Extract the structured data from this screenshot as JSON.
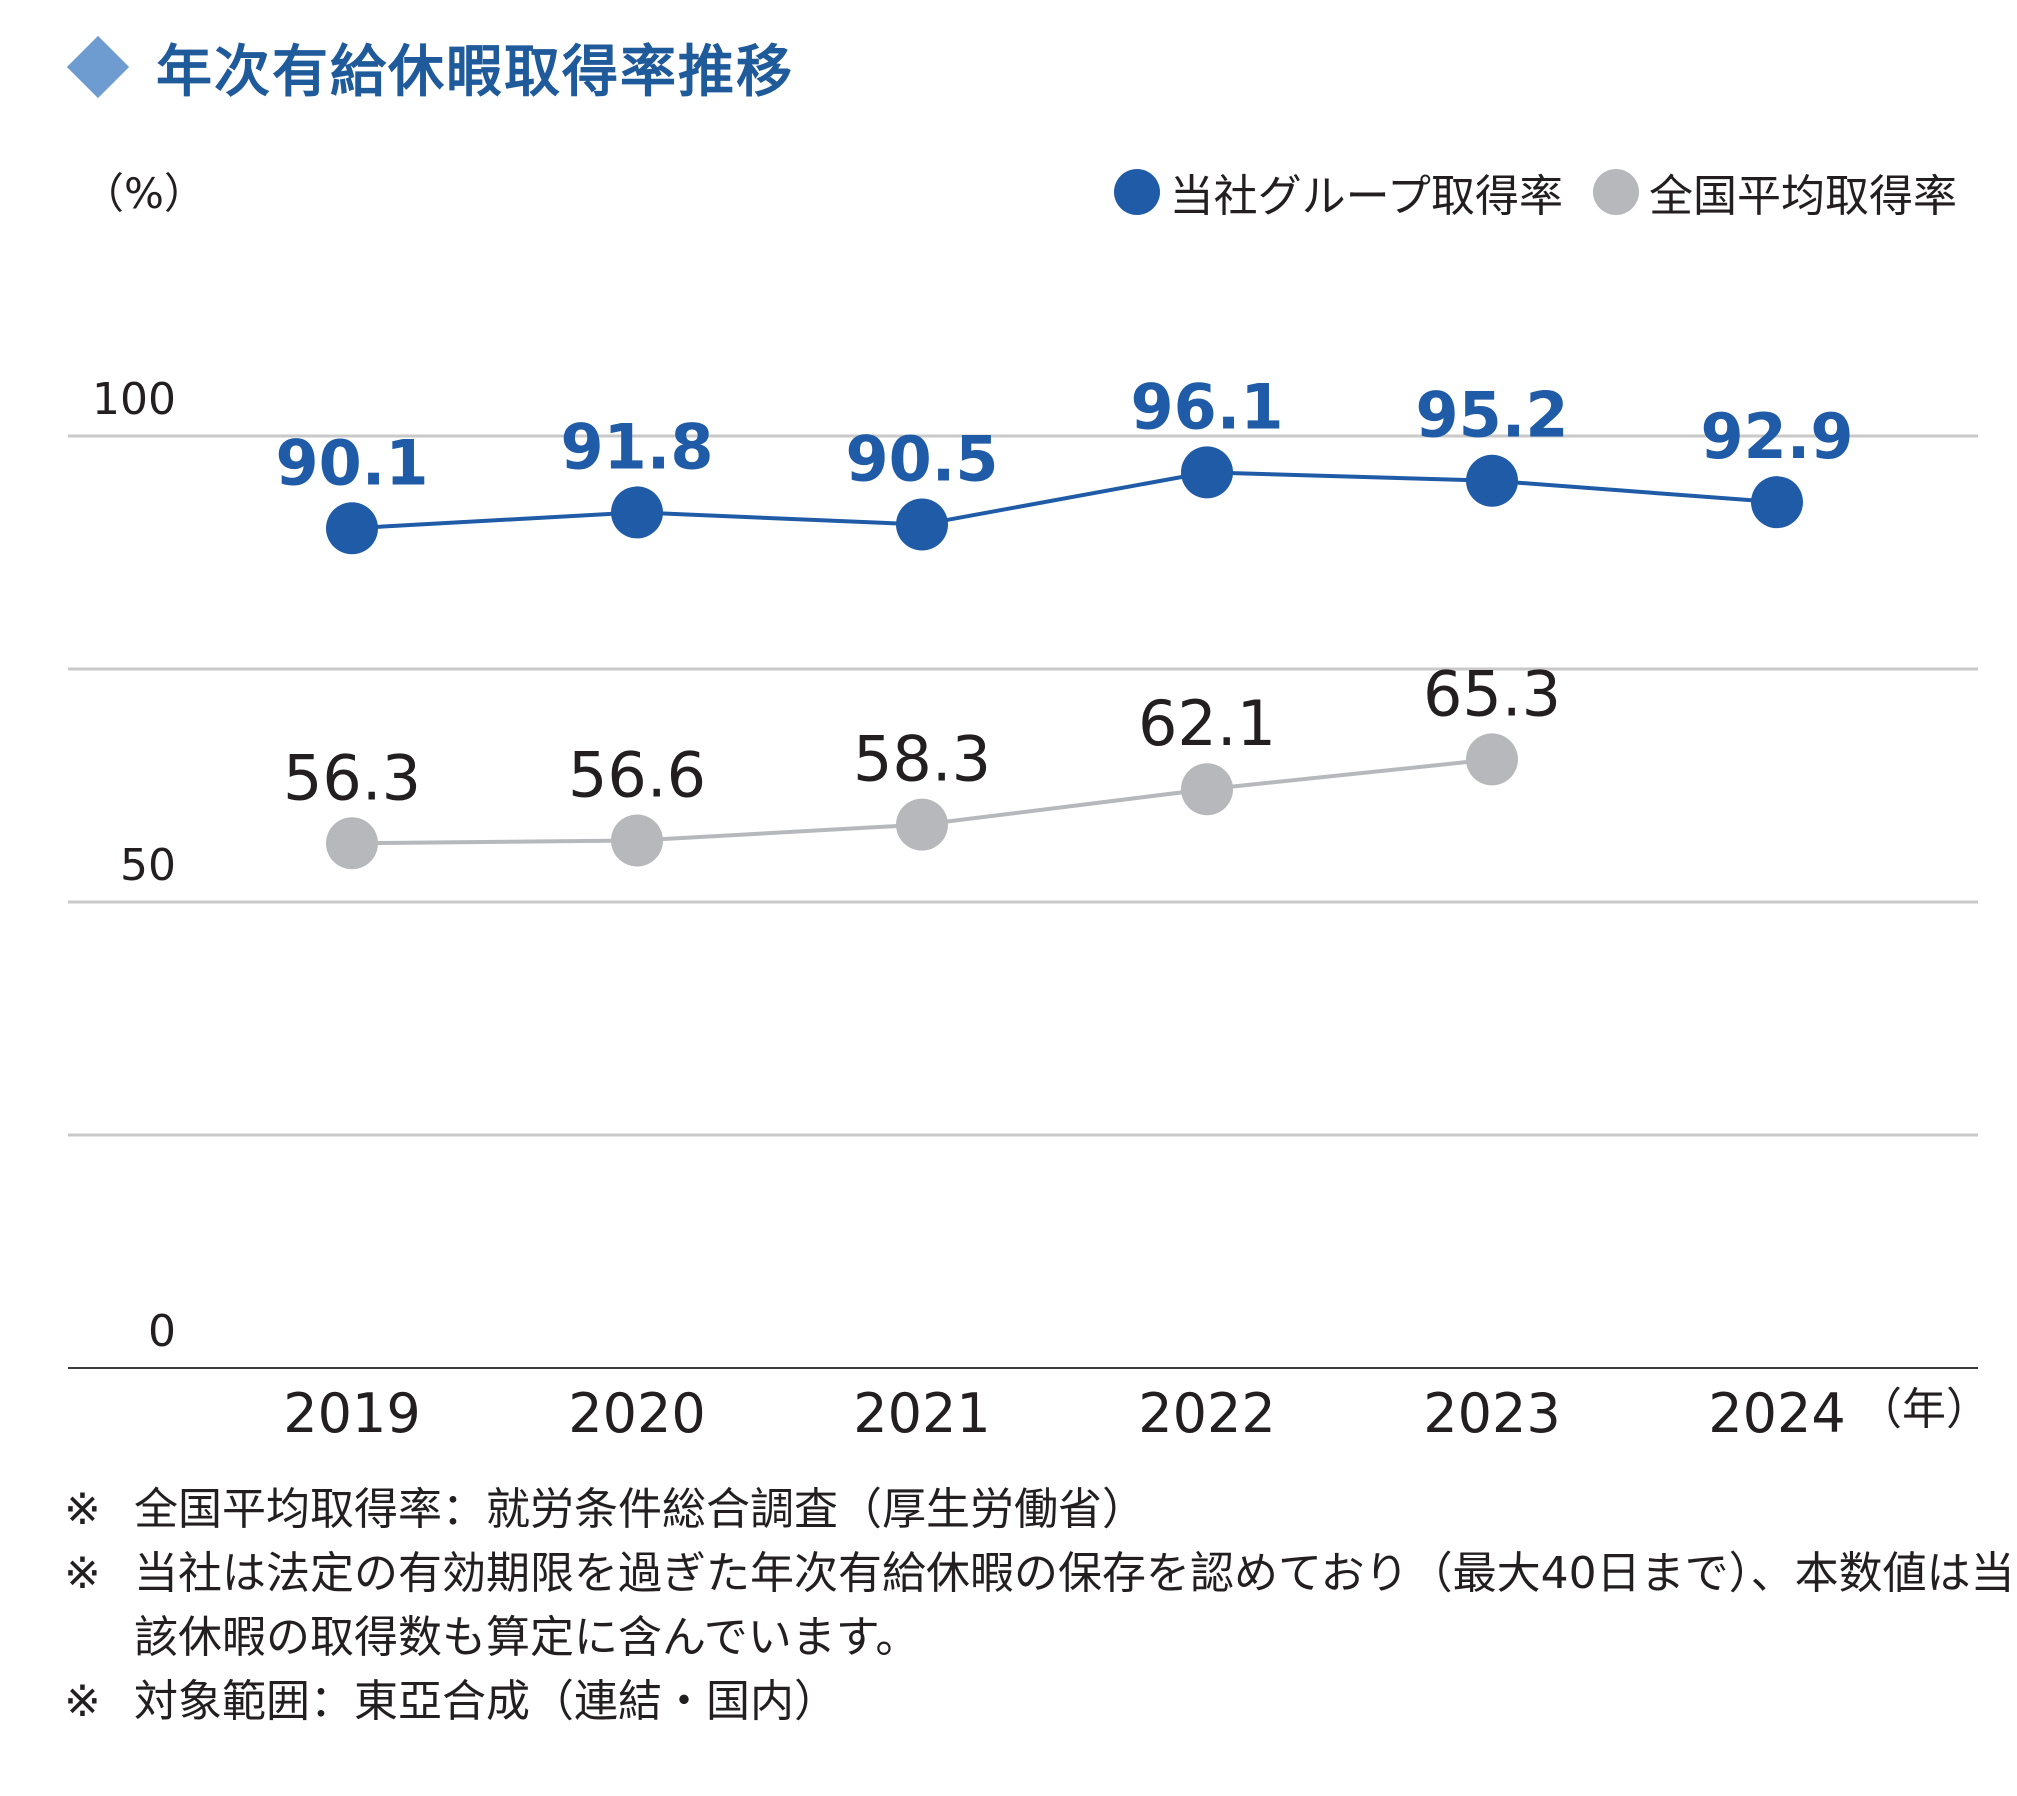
{
  "title": "年次有給休暇取得率推移",
  "chart_data": {
    "type": "line",
    "unit_label": "（%）",
    "x_unit_label": "（年）",
    "categories": [
      "2019",
      "2020",
      "2021",
      "2022",
      "2023",
      "2024"
    ],
    "yticks": [
      "0",
      "50",
      "100"
    ],
    "ylim": [
      0,
      100
    ],
    "series": [
      {
        "name": "当社グループ取得率",
        "color": "#1f5ba6",
        "values": [
          90.1,
          91.8,
          90.5,
          96.1,
          95.2,
          92.9
        ],
        "labels": [
          "90.1",
          "91.8",
          "90.5",
          "96.1",
          "95.2",
          "92.9"
        ]
      },
      {
        "name": "全国平均取得率",
        "color": "#b7b8bb",
        "values": [
          56.3,
          56.6,
          58.3,
          62.1,
          65.3,
          null
        ],
        "labels": [
          "56.3",
          "56.6",
          "58.3",
          "62.1",
          "65.3",
          ""
        ]
      }
    ]
  },
  "notes": [
    {
      "mark": "※",
      "text": "全国平均取得率：就労条件総合調査（厚生労働省）"
    },
    {
      "mark": "※",
      "text": "当社は法定の有効期限を過ぎた年次有給休暇の保存を認めており（最大40日まで）、本数値は当該休暇の取得数も算定に含んでいます。"
    },
    {
      "mark": "※",
      "text": "対象範囲：東亞合成（連結・国内）"
    }
  ]
}
